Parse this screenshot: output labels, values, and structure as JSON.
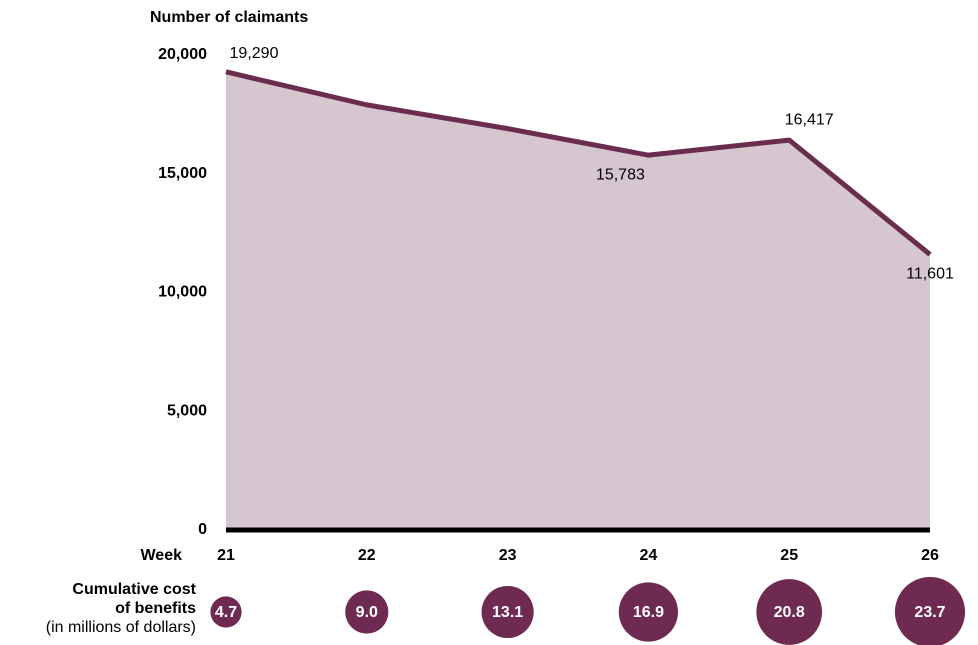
{
  "chart_data": [
    {
      "type": "area",
      "title": "Number of claimants",
      "x_label": "Week",
      "categories": [
        "21",
        "22",
        "23",
        "24",
        "25",
        "26"
      ],
      "values": [
        19290,
        17900,
        16900,
        15783,
        16417,
        11601
      ],
      "value_labels": [
        "19,290",
        null,
        null,
        "15,783",
        "16,417",
        "11,601"
      ],
      "color": "#6b2d4e",
      "fill": "#d6c6d0",
      "ylim": [
        0,
        20000
      ],
      "yticks": [
        0,
        {
          "value": 5000,
          "label": "5,000"
        },
        {
          "value": 10000,
          "label": "10,000"
        },
        {
          "value": 15000,
          "label": "15,000"
        },
        {
          "value": 20000,
          "label": "20,000"
        }
      ]
    },
    {
      "type": "bubble",
      "title": "Cumulative cost of benefits",
      "subtitle": "(in millions of dollars)",
      "values": [
        4.7,
        9,
        13.1,
        16.9,
        20.8,
        23.7
      ],
      "value_labels": [
        "4.7",
        "9.0",
        "13.1",
        "16.9",
        "20.8",
        "23.7"
      ],
      "color": "#6e2a50"
    }
  ]
}
